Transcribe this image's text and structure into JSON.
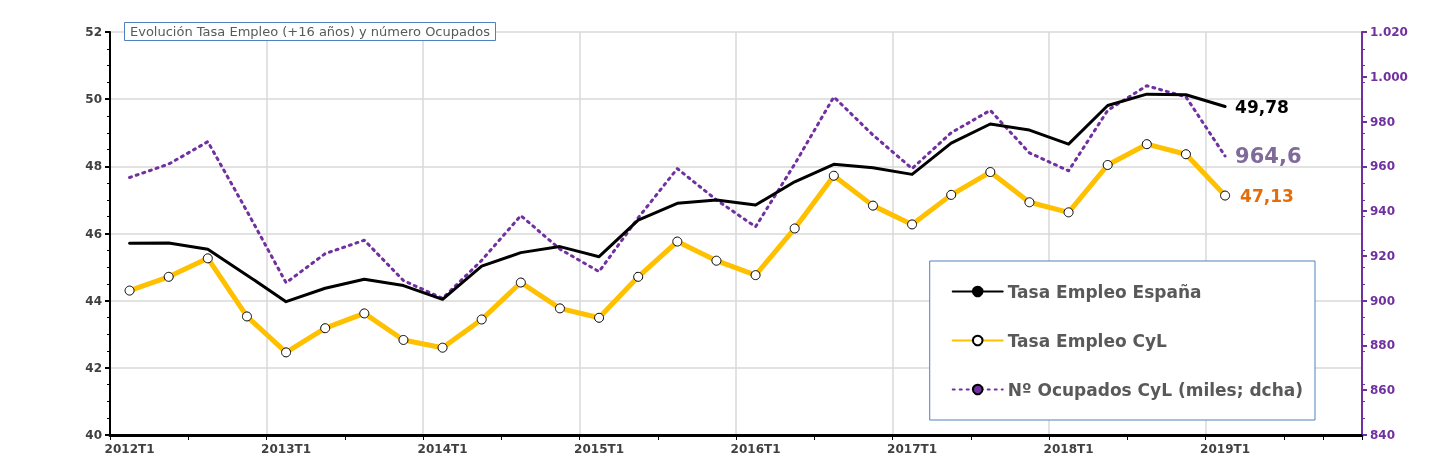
{
  "chart_data": {
    "type": "line",
    "title": "Evolución Tasa Empleo (+16 años) y número Ocupados",
    "categories": [
      "2012T1",
      null,
      null,
      null,
      "2013T1",
      null,
      null,
      null,
      "2014T1",
      null,
      null,
      null,
      "2015T1",
      null,
      null,
      null,
      "2016T1",
      null,
      null,
      null,
      "2017T1",
      null,
      null,
      null,
      "2018T1",
      null,
      null,
      null,
      "2019T1",
      null,
      null,
      null
    ],
    "series": [
      {
        "name": "Tasa Empleo España",
        "color": "#000000",
        "marker": "none",
        "line_style": "solid",
        "values": [
          45.71,
          45.72,
          45.53,
          44.76,
          43.97,
          44.37,
          44.64,
          44.45,
          44.04,
          45.03,
          45.43,
          45.61,
          45.31,
          46.4,
          46.9,
          47.0,
          46.85,
          47.54,
          48.06,
          47.96,
          47.76,
          48.69,
          49.26,
          49.08,
          48.66,
          49.81,
          50.15,
          50.13,
          49.78,
          null,
          null,
          null
        ],
        "value_labels": [
          null,
          null,
          null,
          null,
          null,
          null,
          null,
          null,
          null,
          null,
          null,
          null,
          null,
          null,
          null,
          null,
          null,
          null,
          null,
          null,
          null,
          null,
          null,
          null,
          null,
          null,
          null,
          null,
          "49,78",
          null,
          null,
          null
        ]
      },
      {
        "name": "Tasa Empleo CyL",
        "color": "#ffc000",
        "marker": "circle",
        "line_style": "solid",
        "values": [
          44.3,
          44.71,
          45.26,
          43.53,
          42.46,
          43.18,
          43.62,
          42.83,
          42.6,
          43.44,
          44.54,
          43.77,
          43.49,
          44.71,
          45.76,
          45.19,
          44.76,
          46.15,
          47.72,
          46.83,
          46.27,
          47.15,
          47.83,
          46.93,
          46.63,
          48.04,
          48.66,
          48.36,
          47.13,
          null,
          null,
          null
        ],
        "value_labels": [
          null,
          null,
          null,
          null,
          null,
          null,
          null,
          null,
          null,
          null,
          null,
          null,
          null,
          null,
          null,
          null,
          null,
          null,
          null,
          null,
          null,
          null,
          null,
          null,
          null,
          null,
          null,
          null,
          "47,13",
          null,
          null,
          null
        ]
      },
      {
        "name": "Nº Ocupados CyL (miles; dcha)",
        "color": "#7030a0",
        "marker": "none",
        "line_style": "dotted",
        "axis": "y2",
        "values": [
          955,
          961,
          971,
          940,
          908,
          921,
          927,
          909,
          901,
          918,
          938,
          923,
          913,
          937,
          959,
          945,
          933,
          961,
          991,
          974,
          959,
          975,
          985,
          966,
          958,
          985,
          996,
          991,
          964.6,
          null,
          null,
          null
        ],
        "value_labels": [
          null,
          null,
          null,
          null,
          null,
          null,
          null,
          null,
          null,
          null,
          null,
          null,
          null,
          null,
          null,
          null,
          null,
          null,
          null,
          null,
          null,
          null,
          null,
          null,
          null,
          null,
          null,
          null,
          "964,6",
          null,
          null,
          null
        ]
      }
    ],
    "ylim": [
      40,
      52
    ],
    "yticks": [
      40,
      42,
      44,
      46,
      48,
      50,
      52
    ],
    "y2lim": [
      840,
      1020
    ],
    "y2ticks": [
      840,
      860,
      880,
      900,
      920,
      940,
      960,
      980,
      {
        "value": 1000,
        "label": "1.000"
      },
      {
        "value": 1020,
        "label": "1.020"
      }
    ],
    "grid": true,
    "legend": "bottom right"
  }
}
